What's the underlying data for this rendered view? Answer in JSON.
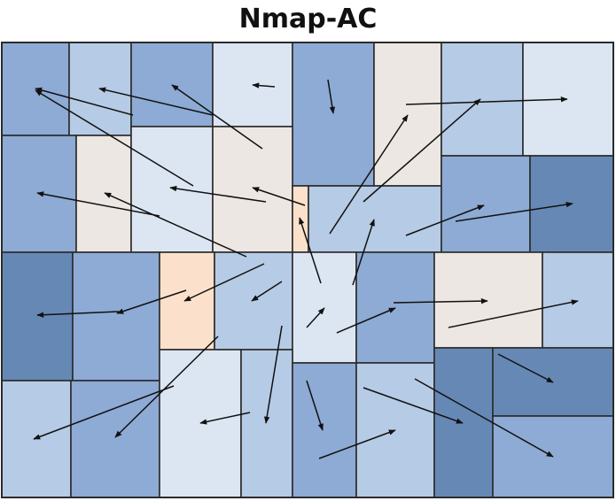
{
  "title": "Nmap-AC",
  "colors": {
    "dark": "#6688b5",
    "mid": "#8dabd4",
    "light": "#b6cbe5",
    "pale": "#dce6f3",
    "beige": "#ece7e3",
    "peach": "#fbe1cc",
    "border": "#2b2b2b",
    "arrow": "#111111"
  },
  "cells": [
    {
      "id": "c01",
      "shade": "mid"
    },
    {
      "id": "c02",
      "shade": "light"
    },
    {
      "id": "c03",
      "shade": "mid"
    },
    {
      "id": "c04",
      "shade": "pale"
    },
    {
      "id": "c05",
      "shade": "mid"
    },
    {
      "id": "c06",
      "shade": "beige"
    },
    {
      "id": "c07",
      "shade": "light"
    },
    {
      "id": "c08",
      "shade": "pale"
    },
    {
      "id": "c09",
      "shade": "mid"
    },
    {
      "id": "c10",
      "shade": "beige"
    },
    {
      "id": "c11",
      "shade": "pale"
    },
    {
      "id": "c12",
      "shade": "beige"
    },
    {
      "id": "c13",
      "shade": "peach"
    },
    {
      "id": "c14",
      "shade": "light"
    },
    {
      "id": "c15",
      "shade": "mid"
    },
    {
      "id": "c16",
      "shade": "dark"
    },
    {
      "id": "c17",
      "shade": "dark"
    },
    {
      "id": "c18",
      "shade": "mid"
    },
    {
      "id": "c19",
      "shade": "peach"
    },
    {
      "id": "c20",
      "shade": "light"
    },
    {
      "id": "c21",
      "shade": "pale"
    },
    {
      "id": "c22",
      "shade": "mid"
    },
    {
      "id": "c23",
      "shade": "beige"
    },
    {
      "id": "c24",
      "shade": "light"
    },
    {
      "id": "c25",
      "shade": "light"
    },
    {
      "id": "c26",
      "shade": "mid"
    },
    {
      "id": "c27",
      "shade": "pale"
    },
    {
      "id": "c28",
      "shade": "light"
    },
    {
      "id": "c29",
      "shade": "mid"
    },
    {
      "id": "c30",
      "shade": "light"
    },
    {
      "id": "c31",
      "shade": "dark"
    },
    {
      "id": "c32",
      "shade": "dark"
    },
    {
      "id": "c33",
      "shade": "mid"
    }
  ],
  "arrow_count": 34
}
